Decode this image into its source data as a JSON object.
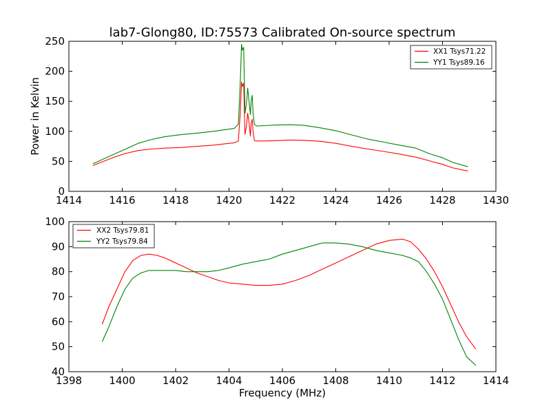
{
  "title": "lab7-Glong80, ID:75573 Calibrated On-source spectrum",
  "colors": {
    "red": "#ff0000",
    "green": "#008000"
  },
  "chart_data": [
    {
      "type": "line",
      "ylabel": "Power in Kelvin",
      "xlabel": "",
      "xlim": [
        1414,
        1430
      ],
      "ylim": [
        0,
        250
      ],
      "xticks": [
        "1414",
        "1416",
        "1418",
        "1420",
        "1422",
        "1424",
        "1426",
        "1428",
        "1430"
      ],
      "yticks": [
        "0",
        "50",
        "100",
        "150",
        "200",
        "250"
      ],
      "legend_position": "top-right",
      "series": [
        {
          "name": "XX1 Tsys71.22",
          "color": "#ff0000",
          "x": [
            1414.9,
            1415.3,
            1415.7,
            1416.1,
            1416.6,
            1417.1,
            1417.6,
            1418.2,
            1418.8,
            1419.4,
            1419.9,
            1420.2,
            1420.35,
            1420.42,
            1420.47,
            1420.5,
            1420.55,
            1420.6,
            1420.65,
            1420.7,
            1420.75,
            1420.8,
            1420.83,
            1420.87,
            1420.9,
            1420.95,
            1421.0,
            1421.05,
            1421.1,
            1421.3,
            1421.8,
            1422.3,
            1422.8,
            1423.4,
            1424.0,
            1424.6,
            1425.2,
            1425.8,
            1426.4,
            1427.0,
            1427.5,
            1428.0,
            1428.4,
            1428.95
          ],
          "y": [
            43,
            50,
            57,
            63,
            68,
            70.5,
            72,
            73,
            75,
            77,
            79.5,
            81,
            84,
            130,
            182,
            175,
            180,
            95,
            108,
            130,
            115,
            92,
            114,
            120,
            100,
            85,
            84,
            84,
            84,
            84,
            84.5,
            85.5,
            85,
            83.5,
            80,
            75,
            70.5,
            66.5,
            62,
            57,
            51,
            45,
            39,
            34
          ]
        },
        {
          "name": "YY1 Tsys89.16",
          "color": "#008000",
          "x": [
            1414.9,
            1415.3,
            1415.7,
            1416.1,
            1416.6,
            1417.1,
            1417.6,
            1418.2,
            1418.8,
            1419.4,
            1419.9,
            1420.2,
            1420.35,
            1420.42,
            1420.47,
            1420.5,
            1420.55,
            1420.6,
            1420.65,
            1420.7,
            1420.75,
            1420.8,
            1420.83,
            1420.87,
            1420.9,
            1420.95,
            1421.0,
            1421.05,
            1421.1,
            1421.3,
            1421.8,
            1422.3,
            1422.8,
            1423.4,
            1424.0,
            1424.6,
            1425.2,
            1425.8,
            1426.4,
            1427.0,
            1427.5,
            1428.0,
            1428.4,
            1428.95
          ],
          "y": [
            46,
            54,
            62,
            70,
            80,
            86.5,
            91,
            94.5,
            97,
            100,
            103,
            105,
            112,
            180,
            245,
            235,
            240,
            130,
            145,
            172,
            150,
            128,
            150,
            160,
            130,
            112,
            110,
            109,
            109,
            109.5,
            110.5,
            111,
            110,
            106,
            101,
            94,
            87,
            82,
            77,
            72,
            63,
            56,
            48,
            41
          ]
        }
      ]
    },
    {
      "type": "line",
      "ylabel": "",
      "xlabel": "Frequency (MHz)",
      "xlim": [
        1398,
        1414
      ],
      "ylim": [
        40,
        100
      ],
      "xticks": [
        "1398",
        "1400",
        "1402",
        "1404",
        "1406",
        "1408",
        "1410",
        "1412",
        "1414"
      ],
      "yticks": [
        "40",
        "50",
        "60",
        "70",
        "80",
        "90",
        "100"
      ],
      "legend_position": "top-left",
      "series": [
        {
          "name": "XX2 Tsys79.81",
          "color": "#ff0000",
          "x": [
            1399.25,
            1399.5,
            1399.8,
            1400.1,
            1400.4,
            1400.7,
            1401.0,
            1401.3,
            1401.6,
            1402.0,
            1402.4,
            1402.8,
            1403.2,
            1403.6,
            1404.0,
            1404.5,
            1405.0,
            1405.5,
            1406.0,
            1406.5,
            1407.0,
            1407.5,
            1408.0,
            1408.5,
            1409.0,
            1409.5,
            1410.0,
            1410.5,
            1410.8,
            1411.1,
            1411.4,
            1411.7,
            1412.0,
            1412.3,
            1412.6,
            1412.9,
            1413.25
          ],
          "y": [
            59,
            66,
            73,
            80,
            84.5,
            86.5,
            87,
            86.5,
            85.5,
            83.5,
            81.5,
            79.5,
            78,
            76.5,
            75.5,
            75,
            74.5,
            74.5,
            75,
            76.5,
            78.5,
            81,
            83.5,
            86,
            88.5,
            91,
            92.5,
            93,
            92,
            89,
            85,
            80,
            74,
            67,
            60,
            54,
            49
          ]
        },
        {
          "name": "YY2 Tsys79.84",
          "color": "#008000",
          "x": [
            1399.25,
            1399.5,
            1399.8,
            1400.1,
            1400.4,
            1400.7,
            1401.0,
            1401.3,
            1401.6,
            1402.0,
            1402.4,
            1402.8,
            1403.2,
            1403.6,
            1404.0,
            1404.5,
            1405.0,
            1405.5,
            1406.0,
            1406.5,
            1407.0,
            1407.5,
            1408.0,
            1408.5,
            1409.0,
            1409.5,
            1410.0,
            1410.5,
            1410.8,
            1411.1,
            1411.4,
            1411.7,
            1412.0,
            1412.3,
            1412.6,
            1412.9,
            1413.25
          ],
          "y": [
            52,
            58,
            66,
            73,
            77.5,
            79.5,
            80.5,
            80.5,
            80.5,
            80.5,
            80,
            80,
            80,
            80.5,
            81.5,
            83,
            84,
            85,
            87,
            88.5,
            90,
            91.5,
            91.5,
            91,
            90,
            88.5,
            87.5,
            86.5,
            85.5,
            84,
            80,
            75,
            69,
            61,
            53,
            46,
            42.5
          ]
        }
      ]
    }
  ]
}
